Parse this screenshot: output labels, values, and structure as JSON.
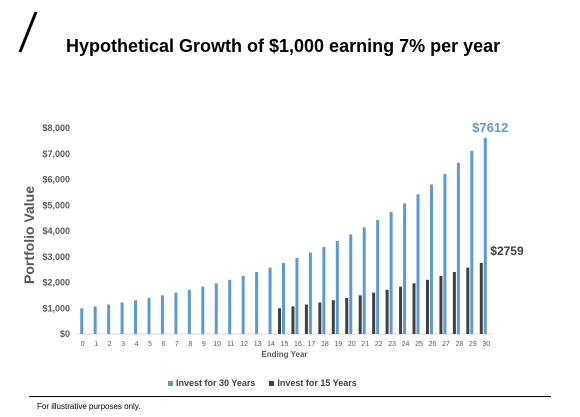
{
  "title": "Hypothetical Growth of $1,000 earning 7% per year",
  "footnote": "For illustrative purposes only.",
  "colors": {
    "series30": "#5B9BD5",
    "series15": "#404040",
    "label30": "#5B9BD5",
    "label15": "#404040",
    "axis": "#595959",
    "grid": "#D9D9D9"
  },
  "chart_data": {
    "type": "bar",
    "xlabel": "Ending Year",
    "ylabel": "Portfolio Value",
    "ylim": [
      0,
      8000
    ],
    "yticks": [
      0,
      1000,
      2000,
      3000,
      4000,
      5000,
      6000,
      7000,
      8000
    ],
    "ytick_labels": [
      "$0",
      "$1,000",
      "$2,000",
      "$3,000",
      "$4,000",
      "$5,000",
      "$6,000",
      "$7,000",
      "$8,000"
    ],
    "categories": [
      "0",
      "1",
      "2",
      "3",
      "4",
      "5",
      "6",
      "7",
      "8",
      "9",
      "10",
      "11",
      "12",
      "13",
      "14",
      "15",
      "16",
      "17",
      "18",
      "19",
      "20",
      "21",
      "22",
      "23",
      "24",
      "25",
      "26",
      "27",
      "28",
      "29",
      "30"
    ],
    "series": [
      {
        "name": "Invest for 30 Years",
        "values": [
          1000,
          1070,
          1145,
          1225,
          1311,
          1403,
          1501,
          1606,
          1718,
          1838,
          1967,
          2105,
          2252,
          2410,
          2579,
          2759,
          2952,
          3159,
          3380,
          3617,
          3870,
          4141,
          4430,
          4741,
          5072,
          5427,
          5807,
          6214,
          6649,
          7114,
          7612
        ]
      },
      {
        "name": "Invest for 15 Years",
        "values": [
          null,
          null,
          null,
          null,
          null,
          null,
          null,
          null,
          null,
          null,
          null,
          null,
          null,
          null,
          null,
          1000,
          1070,
          1145,
          1225,
          1311,
          1403,
          1501,
          1606,
          1718,
          1838,
          1967,
          2105,
          2252,
          2410,
          2579,
          2759
        ]
      }
    ],
    "annotations": [
      {
        "text": "$7612",
        "series": 0,
        "category": "30"
      },
      {
        "text": "$2759",
        "series": 1,
        "category": "30"
      }
    ],
    "legend": "bottom",
    "grid": false
  }
}
